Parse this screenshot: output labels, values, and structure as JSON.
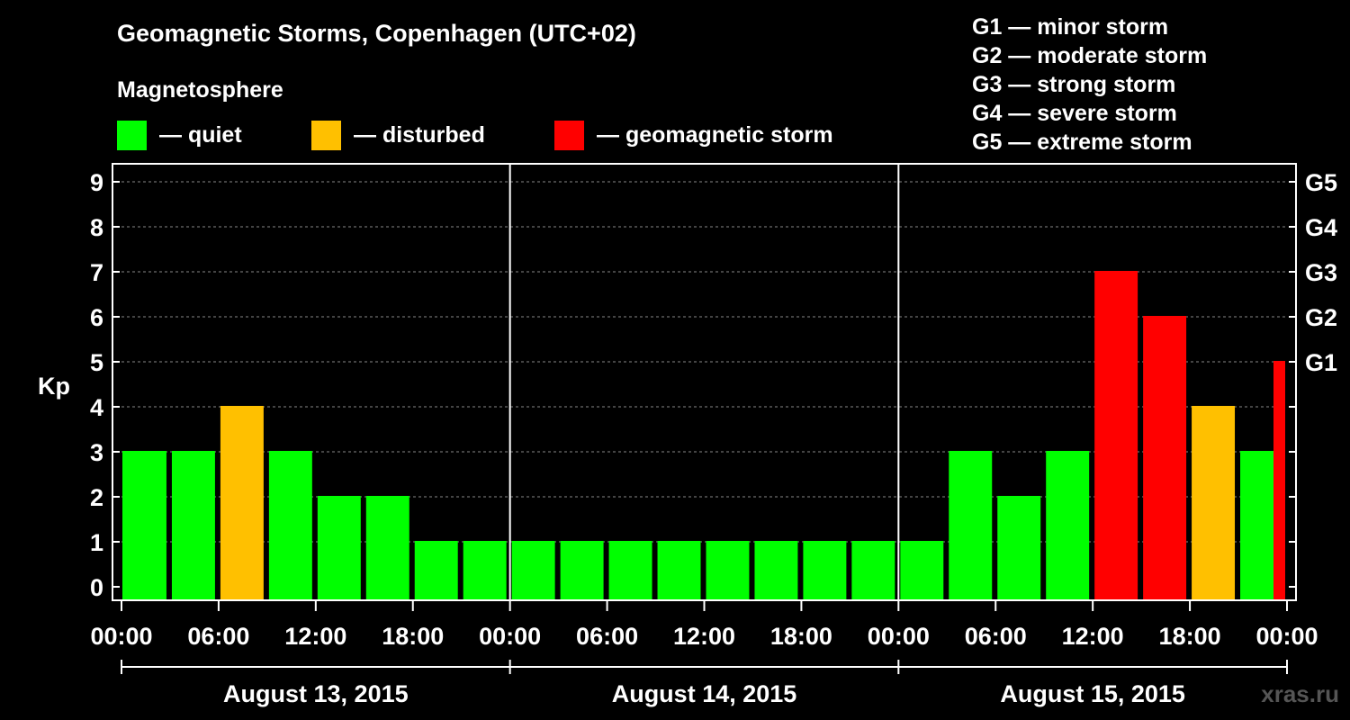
{
  "title": "Geomagnetic Storms, Copenhagen (UTC+02)",
  "subtitle": "Magnetosphere",
  "legend": [
    {
      "label": "— quiet",
      "color": "#00ff00"
    },
    {
      "label": "— disturbed",
      "color": "#ffc000"
    },
    {
      "label": "— geomagnetic storm",
      "color": "#ff0000"
    }
  ],
  "g_legend": [
    "G1 — minor storm",
    "G2 — moderate storm",
    "G3 — strong storm",
    "G4 — severe storm",
    "G5 — extreme storm"
  ],
  "watermark": "xras.ru",
  "colors": {
    "quiet": "#00ff00",
    "disturbed": "#ffc000",
    "storm": "#ff0000",
    "background": "#000000",
    "axis": "#ffffff"
  },
  "chart_data": {
    "type": "bar",
    "ylabel": "Kp",
    "ylim": [
      0,
      9
    ],
    "y_ticks": [
      0,
      1,
      2,
      3,
      4,
      5,
      6,
      7,
      8,
      9
    ],
    "g_scale": [
      {
        "kp": 5,
        "label": "G1"
      },
      {
        "kp": 6,
        "label": "G2"
      },
      {
        "kp": 7,
        "label": "G3"
      },
      {
        "kp": 8,
        "label": "G4"
      },
      {
        "kp": 9,
        "label": "G5"
      }
    ],
    "x_ticks": [
      "00:00",
      "06:00",
      "12:00",
      "18:00",
      "00:00",
      "06:00",
      "12:00",
      "18:00",
      "00:00",
      "06:00",
      "12:00",
      "18:00",
      "00:00"
    ],
    "days": [
      "August 13, 2015",
      "August 14, 2015",
      "August 15, 2015"
    ],
    "interval_hours": 3,
    "kp_values": [
      3,
      3,
      4,
      3,
      2,
      2,
      1,
      1,
      1,
      1,
      1,
      1,
      1,
      1,
      1,
      1,
      1,
      3,
      2,
      3,
      7,
      6,
      4,
      3,
      5
    ],
    "last_bar_partial": true,
    "grid": "dashed horizontal"
  }
}
